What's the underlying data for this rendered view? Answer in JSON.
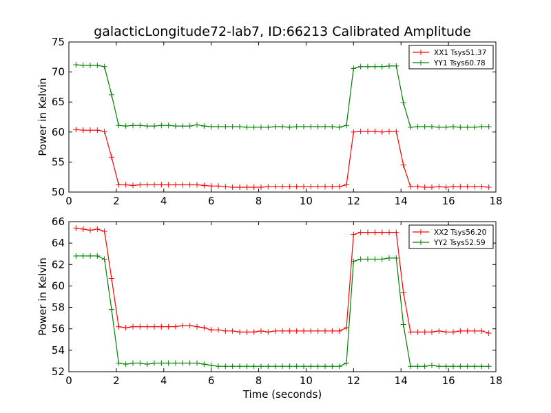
{
  "title": "galacticLongitude72-lab7, ID:66213 Calibrated Amplitude",
  "colors": {
    "red": "#ff0000",
    "green": "#008000",
    "frame": "#000000"
  },
  "chart_data": [
    {
      "type": "line",
      "xlabel": "",
      "ylabel": "Power in Kelvin",
      "xlim": [
        0,
        18
      ],
      "ylim": [
        50,
        75
      ],
      "xticks": [
        "0",
        "2",
        "4",
        "6",
        "8",
        "10",
        "12",
        "14",
        "16",
        "18"
      ],
      "yticks": [
        "50",
        "55",
        "60",
        "65",
        "70",
        "75"
      ],
      "grid": false,
      "legend_position": "top-right",
      "x": [
        0.3,
        0.6,
        0.9,
        1.2,
        1.5,
        1.8,
        2.1,
        2.4,
        2.7,
        3.0,
        3.3,
        3.6,
        3.9,
        4.2,
        4.5,
        4.8,
        5.1,
        5.4,
        5.7,
        6.0,
        6.3,
        6.6,
        6.9,
        7.2,
        7.5,
        7.8,
        8.1,
        8.4,
        8.7,
        9.0,
        9.3,
        9.6,
        9.9,
        10.2,
        10.5,
        10.8,
        11.1,
        11.4,
        11.7,
        12.0,
        12.3,
        12.6,
        12.9,
        13.2,
        13.5,
        13.8,
        14.1,
        14.4,
        14.7,
        15.0,
        15.3,
        15.6,
        15.9,
        16.2,
        16.5,
        16.8,
        17.1,
        17.4,
        17.7
      ],
      "series": [
        {
          "name": "XX1 Tsys51.37",
          "color": "#ff0000",
          "values": [
            60.4,
            60.3,
            60.3,
            60.3,
            60.1,
            55.8,
            51.2,
            51.2,
            51.1,
            51.2,
            51.2,
            51.2,
            51.2,
            51.2,
            51.2,
            51.2,
            51.2,
            51.2,
            51.1,
            51.0,
            51.0,
            50.9,
            50.8,
            50.8,
            50.8,
            50.8,
            50.8,
            50.9,
            50.9,
            50.9,
            50.9,
            50.9,
            50.9,
            50.9,
            50.9,
            50.9,
            50.9,
            50.9,
            51.2,
            60.0,
            60.1,
            60.1,
            60.1,
            60.0,
            60.1,
            60.1,
            54.5,
            50.9,
            50.9,
            50.8,
            50.8,
            50.9,
            50.8,
            50.9,
            50.9,
            50.9,
            50.9,
            50.9,
            50.8
          ]
        },
        {
          "name": "YY1 Tsys60.78",
          "color": "#008000",
          "values": [
            71.2,
            71.1,
            71.1,
            71.1,
            70.9,
            66.2,
            61.1,
            61.0,
            61.1,
            61.1,
            61.0,
            61.0,
            61.1,
            61.1,
            61.0,
            61.0,
            61.0,
            61.2,
            61.0,
            60.9,
            60.9,
            60.9,
            60.9,
            60.9,
            60.8,
            60.8,
            60.8,
            60.8,
            60.9,
            60.9,
            60.8,
            60.9,
            60.9,
            60.9,
            60.9,
            60.9,
            60.9,
            60.8,
            61.1,
            70.6,
            70.9,
            70.9,
            70.9,
            70.9,
            71.0,
            71.0,
            64.9,
            60.8,
            60.9,
            60.9,
            60.9,
            60.8,
            60.8,
            60.9,
            60.8,
            60.8,
            60.8,
            60.9,
            60.9
          ]
        }
      ]
    },
    {
      "type": "line",
      "xlabel": "Time (seconds)",
      "ylabel": "Power in Kelvin",
      "xlim": [
        0,
        18
      ],
      "ylim": [
        52,
        66
      ],
      "xticks": [
        "0",
        "2",
        "4",
        "6",
        "8",
        "10",
        "12",
        "14",
        "16",
        "18"
      ],
      "yticks": [
        "52",
        "54",
        "56",
        "58",
        "60",
        "62",
        "64",
        "66"
      ],
      "grid": false,
      "legend_position": "top-right",
      "x": [
        0.3,
        0.6,
        0.9,
        1.2,
        1.5,
        1.8,
        2.1,
        2.4,
        2.7,
        3.0,
        3.3,
        3.6,
        3.9,
        4.2,
        4.5,
        4.8,
        5.1,
        5.4,
        5.7,
        6.0,
        6.3,
        6.6,
        6.9,
        7.2,
        7.5,
        7.8,
        8.1,
        8.4,
        8.7,
        9.0,
        9.3,
        9.6,
        9.9,
        10.2,
        10.5,
        10.8,
        11.1,
        11.4,
        11.7,
        12.0,
        12.3,
        12.6,
        12.9,
        13.2,
        13.5,
        13.8,
        14.1,
        14.4,
        14.7,
        15.0,
        15.3,
        15.6,
        15.9,
        16.2,
        16.5,
        16.8,
        17.1,
        17.4,
        17.7
      ],
      "series": [
        {
          "name": "XX2 Tsys56.20",
          "color": "#ff0000",
          "values": [
            65.4,
            65.3,
            65.2,
            65.3,
            65.1,
            60.7,
            56.2,
            56.1,
            56.2,
            56.2,
            56.2,
            56.2,
            56.2,
            56.2,
            56.2,
            56.3,
            56.3,
            56.2,
            56.1,
            55.9,
            55.9,
            55.8,
            55.8,
            55.7,
            55.7,
            55.7,
            55.8,
            55.7,
            55.8,
            55.8,
            55.8,
            55.8,
            55.8,
            55.8,
            55.8,
            55.8,
            55.8,
            55.8,
            56.1,
            64.8,
            65.0,
            65.0,
            65.0,
            65.0,
            65.0,
            65.0,
            59.4,
            55.7,
            55.7,
            55.7,
            55.7,
            55.8,
            55.7,
            55.7,
            55.8,
            55.8,
            55.8,
            55.8,
            55.6
          ]
        },
        {
          "name": "YY2 Tsys52.59",
          "color": "#008000",
          "values": [
            62.8,
            62.8,
            62.8,
            62.8,
            62.5,
            57.8,
            52.8,
            52.7,
            52.8,
            52.8,
            52.7,
            52.8,
            52.8,
            52.8,
            52.8,
            52.8,
            52.8,
            52.8,
            52.7,
            52.6,
            52.5,
            52.5,
            52.5,
            52.5,
            52.5,
            52.5,
            52.5,
            52.5,
            52.5,
            52.5,
            52.5,
            52.5,
            52.5,
            52.5,
            52.5,
            52.5,
            52.5,
            52.5,
            52.8,
            62.3,
            62.5,
            62.5,
            62.5,
            62.5,
            62.6,
            62.6,
            56.4,
            52.5,
            52.5,
            52.5,
            52.6,
            52.5,
            52.5,
            52.5,
            52.5,
            52.5,
            52.5,
            52.5,
            52.5
          ]
        }
      ]
    }
  ]
}
